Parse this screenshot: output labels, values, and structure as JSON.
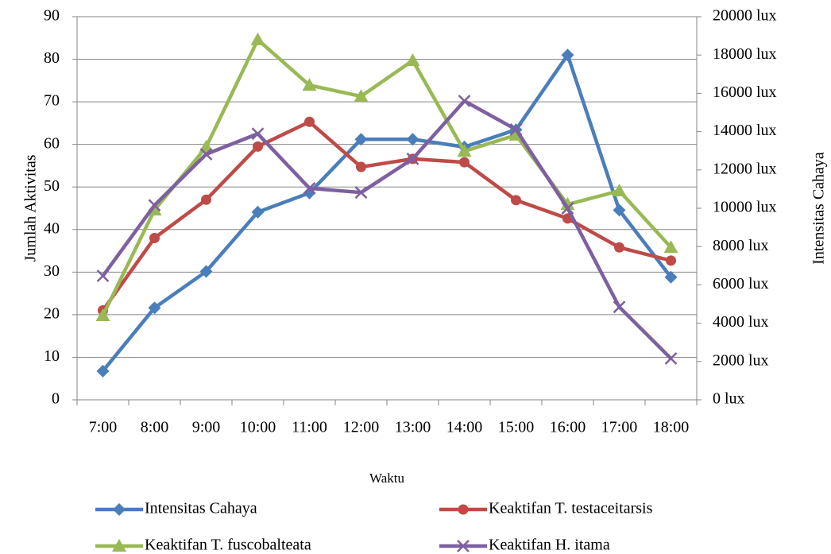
{
  "chart_data": {
    "type": "line",
    "x_label": "Waktu",
    "y_label": "Jumlah Aktivitas",
    "y2_label": "Intensitas Cahaya",
    "categories": [
      "7:00",
      "8:00",
      "9:00",
      "10:00",
      "11:00",
      "12:00",
      "13:00",
      "14:00",
      "15:00",
      "16:00",
      "17:00",
      "18:00"
    ],
    "ylim": [
      0,
      90
    ],
    "yticks": [
      0,
      10,
      20,
      30,
      40,
      50,
      60,
      70,
      80,
      90
    ],
    "y2lim": [
      0,
      20000
    ],
    "y2ticks": [
      {
        "value": 0,
        "label": "0 lux"
      },
      {
        "value": 2000,
        "label": "2000 lux"
      },
      {
        "value": 4000,
        "label": "4000 lux"
      },
      {
        "value": 6000,
        "label": "6000 lux"
      },
      {
        "value": 8000,
        "label": "8000 lux"
      },
      {
        "value": 10000,
        "label": "10000 lux"
      },
      {
        "value": 12000,
        "label": "12000 lux"
      },
      {
        "value": 14000,
        "label": "14000 lux"
      },
      {
        "value": 16000,
        "label": "16000 lux"
      },
      {
        "value": 18000,
        "label": "18000 lux"
      },
      {
        "value": 20000,
        "label": "20000 lux"
      }
    ],
    "grid": true,
    "legend": "bottom",
    "series": [
      {
        "name": "Intensitas Cahaya",
        "color": "#4a7ebb",
        "marker": "diamond",
        "axis": "y2",
        "values": [
          1500,
          4800,
          6700,
          9800,
          10800,
          13600,
          13600,
          13200,
          14100,
          18000,
          9900,
          6400
        ]
      },
      {
        "name": "Keaktifan T. testaceitarsis",
        "color": "#be4b48",
        "marker": "circle",
        "values": [
          21,
          38,
          47,
          59.5,
          65.3,
          54.7,
          56.6,
          55.8,
          46.9,
          42.6,
          35.8,
          32.7
        ]
      },
      {
        "name": "Keaktifan T. fuscobalteata",
        "color": "#98b954",
        "marker": "triangle",
        "values": [
          19.8,
          44.6,
          59.4,
          84.6,
          73.9,
          71.3,
          79.7,
          58.4,
          62.2,
          45.9,
          49.1,
          35.8
        ]
      },
      {
        "name": "Keaktifan H. itama",
        "color": "#7d60a0",
        "marker": "x",
        "values": [
          29.1,
          45.7,
          57.7,
          62.5,
          49.7,
          48.7,
          56.6,
          70.2,
          63.5,
          45,
          21.8,
          9.7
        ]
      }
    ]
  }
}
